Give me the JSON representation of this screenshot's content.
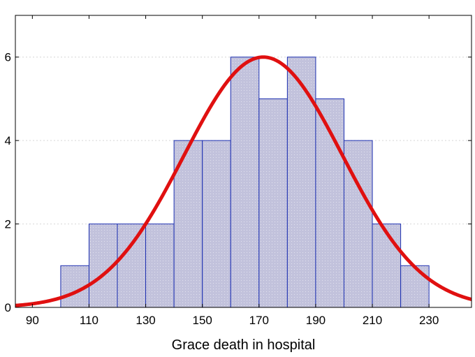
{
  "chart_data": {
    "type": "bar",
    "subtype": "histogram-with-normal-fit",
    "title": "",
    "xlabel": "Grace death in hospital",
    "ylabel": "",
    "xlim": [
      84,
      245
    ],
    "ylim": [
      0,
      7
    ],
    "x_ticks": [
      90,
      110,
      130,
      150,
      170,
      190,
      210,
      230
    ],
    "y_ticks": [
      0,
      2,
      4,
      6
    ],
    "bins": [
      {
        "from": 100,
        "to": 110,
        "count": 1
      },
      {
        "from": 110,
        "to": 120,
        "count": 2
      },
      {
        "from": 120,
        "to": 130,
        "count": 2
      },
      {
        "from": 130,
        "to": 140,
        "count": 2
      },
      {
        "from": 140,
        "to": 150,
        "count": 4
      },
      {
        "from": 150,
        "to": 160,
        "count": 4
      },
      {
        "from": 160,
        "to": 170,
        "count": 6
      },
      {
        "from": 170,
        "to": 180,
        "count": 5
      },
      {
        "from": 180,
        "to": 190,
        "count": 6
      },
      {
        "from": 190,
        "to": 200,
        "count": 5
      },
      {
        "from": 200,
        "to": 210,
        "count": 4
      },
      {
        "from": 210,
        "to": 220,
        "count": 2
      },
      {
        "from": 220,
        "to": 230,
        "count": 1
      }
    ],
    "normal_curve": {
      "mean": 171.5,
      "sd": 28,
      "peak": 6
    },
    "grid": true,
    "colors": {
      "bar_fill": "#c2c2dc",
      "bar_stroke": "#1c2fb0",
      "curve": "#e01010",
      "grid": "#d6d6d6"
    }
  }
}
